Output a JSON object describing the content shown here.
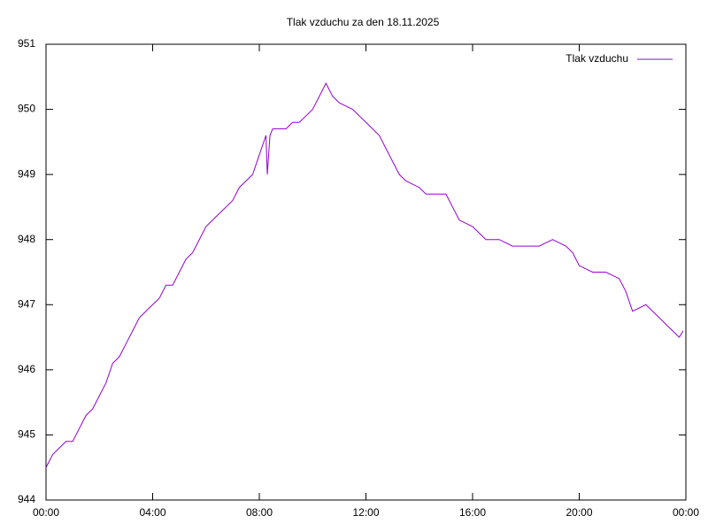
{
  "chart_data": {
    "type": "line",
    "title": "Tlak vzduchu za den 18.11.2025",
    "x": [
      0,
      0.25,
      0.5,
      0.75,
      1.0,
      1.25,
      1.5,
      1.75,
      2.0,
      2.25,
      2.5,
      2.75,
      3.0,
      3.25,
      3.5,
      3.75,
      4.0,
      4.25,
      4.5,
      4.75,
      5.0,
      5.25,
      5.5,
      5.75,
      6.0,
      6.25,
      6.5,
      6.75,
      7.0,
      7.25,
      7.5,
      7.75,
      8.0,
      8.25,
      8.3,
      8.4,
      8.5,
      9.0,
      9.25,
      9.5,
      9.75,
      10.0,
      10.25,
      10.5,
      10.75,
      11.0,
      11.5,
      11.75,
      12.0,
      12.5,
      12.75,
      13.0,
      13.25,
      13.5,
      14.0,
      14.25,
      14.5,
      15.0,
      15.25,
      15.5,
      16.0,
      16.25,
      16.5,
      17.0,
      17.5,
      18.0,
      18.5,
      19.0,
      19.5,
      19.75,
      20.0,
      20.5,
      21.0,
      21.5,
      21.75,
      22.0,
      22.5,
      22.75,
      23.0,
      23.25,
      23.5,
      23.75,
      23.9
    ],
    "series": [
      {
        "name": "Tlak vzduchu",
        "color": "#9400d3",
        "values": [
          944.5,
          944.7,
          944.8,
          944.9,
          944.9,
          945.1,
          945.3,
          945.4,
          945.6,
          945.8,
          946.1,
          946.2,
          946.4,
          946.6,
          946.8,
          946.9,
          947.0,
          947.1,
          947.3,
          947.3,
          947.5,
          947.7,
          947.8,
          948.0,
          948.2,
          948.3,
          948.4,
          948.5,
          948.6,
          948.8,
          948.9,
          949.0,
          949.3,
          949.6,
          949.0,
          949.6,
          949.7,
          949.7,
          949.8,
          949.8,
          949.9,
          950.0,
          950.2,
          950.4,
          950.2,
          950.1,
          950.0,
          949.9,
          949.8,
          949.6,
          949.4,
          949.2,
          949.0,
          948.9,
          948.8,
          948.7,
          948.7,
          948.7,
          948.5,
          948.3,
          948.2,
          948.1,
          948.0,
          948.0,
          947.9,
          947.9,
          947.9,
          948.0,
          947.9,
          947.8,
          947.6,
          947.5,
          947.5,
          947.4,
          947.2,
          946.9,
          947.0,
          946.9,
          946.8,
          946.7,
          946.6,
          946.5,
          946.6
        ]
      }
    ],
    "xlim": [
      0,
      24
    ],
    "xticks": [
      {
        "value": 0,
        "label": "00:00"
      },
      {
        "value": 4,
        "label": "04:00"
      },
      {
        "value": 8,
        "label": "08:00"
      },
      {
        "value": 12,
        "label": "12:00"
      },
      {
        "value": 16,
        "label": "16:00"
      },
      {
        "value": 20,
        "label": "20:00"
      },
      {
        "value": 24,
        "label": "00:00"
      }
    ],
    "ylim": [
      944,
      951
    ],
    "yticks": [
      944,
      945,
      946,
      947,
      948,
      949,
      950,
      951
    ],
    "legend": "top-right"
  }
}
